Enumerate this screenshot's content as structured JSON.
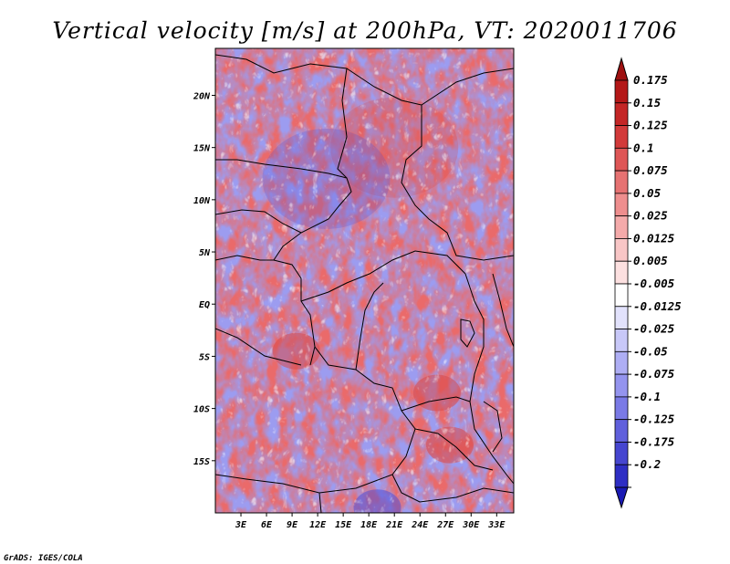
{
  "chart_data": {
    "type": "heatmap",
    "title": "Vertical velocity [m/s] at 200hPa, VT: 2020011706",
    "credit": "GrADS: IGES/COLA",
    "x_axis": {
      "range": [
        0,
        35
      ],
      "ticks": [
        {
          "value": 3,
          "label": "3E"
        },
        {
          "value": 6,
          "label": "6E"
        },
        {
          "value": 9,
          "label": "9E"
        },
        {
          "value": 12,
          "label": "12E"
        },
        {
          "value": 15,
          "label": "15E"
        },
        {
          "value": 18,
          "label": "18E"
        },
        {
          "value": 21,
          "label": "21E"
        },
        {
          "value": 24,
          "label": "24E"
        },
        {
          "value": 27,
          "label": "27E"
        },
        {
          "value": 30,
          "label": "30E"
        },
        {
          "value": 33,
          "label": "33E"
        }
      ]
    },
    "y_axis": {
      "range": [
        -20,
        24.5
      ],
      "ticks": [
        {
          "value": 20,
          "label": "20N"
        },
        {
          "value": 15,
          "label": "15N"
        },
        {
          "value": 10,
          "label": "10N"
        },
        {
          "value": 5,
          "label": "5N"
        },
        {
          "value": 0,
          "label": "EQ"
        },
        {
          "value": -5,
          "label": "5S"
        },
        {
          "value": -10,
          "label": "10S"
        },
        {
          "value": -15,
          "label": "15S"
        }
      ]
    },
    "colorbar": {
      "levels": [
        {
          "label": "0.175",
          "color": "#b41818"
        },
        {
          "label": "0.15",
          "color": "#c42626"
        },
        {
          "label": "0.125",
          "color": "#d23a3a"
        },
        {
          "label": "0.1",
          "color": "#de5656"
        },
        {
          "label": "0.075",
          "color": "#e67272"
        },
        {
          "label": "0.05",
          "color": "#ee8e8e"
        },
        {
          "label": "0.025",
          "color": "#f4aaaa"
        },
        {
          "label": "0.0125",
          "color": "#f8c6c6"
        },
        {
          "label": "0.005",
          "color": "#fce0e0"
        },
        {
          "label": "-0.005",
          "color": "#ffffff"
        },
        {
          "label": "-0.0125",
          "color": "#e2e2fc"
        },
        {
          "label": "-0.025",
          "color": "#c8c8f8"
        },
        {
          "label": "-0.05",
          "color": "#aeaef4"
        },
        {
          "label": "-0.075",
          "color": "#9494ee"
        },
        {
          "label": "-0.1",
          "color": "#7a7ae6"
        },
        {
          "label": "-0.125",
          "color": "#6060dc"
        },
        {
          "label": "-0.175",
          "color": "#4646d0"
        },
        {
          "label": "-0.2",
          "color": "#2e2ec4"
        }
      ],
      "over_color": "#9e1010",
      "under_color": "#1a1ab4"
    },
    "regions": [
      {
        "name": "red-band-sahara",
        "sign": "positive",
        "lon": 21,
        "lat": 15
      },
      {
        "name": "red-core-gabon",
        "sign": "positive",
        "lon": 9.5,
        "lat": -4.5
      },
      {
        "name": "red-core-zambia",
        "sign": "positive",
        "lon": 27.5,
        "lat": -13.5
      },
      {
        "name": "red-core-east",
        "sign": "positive",
        "lon": 26,
        "lat": -8.5
      },
      {
        "name": "blue-core-south",
        "sign": "negative",
        "lon": 19,
        "lat": -19.5
      },
      {
        "name": "blue-band-central",
        "sign": "negative",
        "lon": 13,
        "lat": 12
      }
    ]
  }
}
